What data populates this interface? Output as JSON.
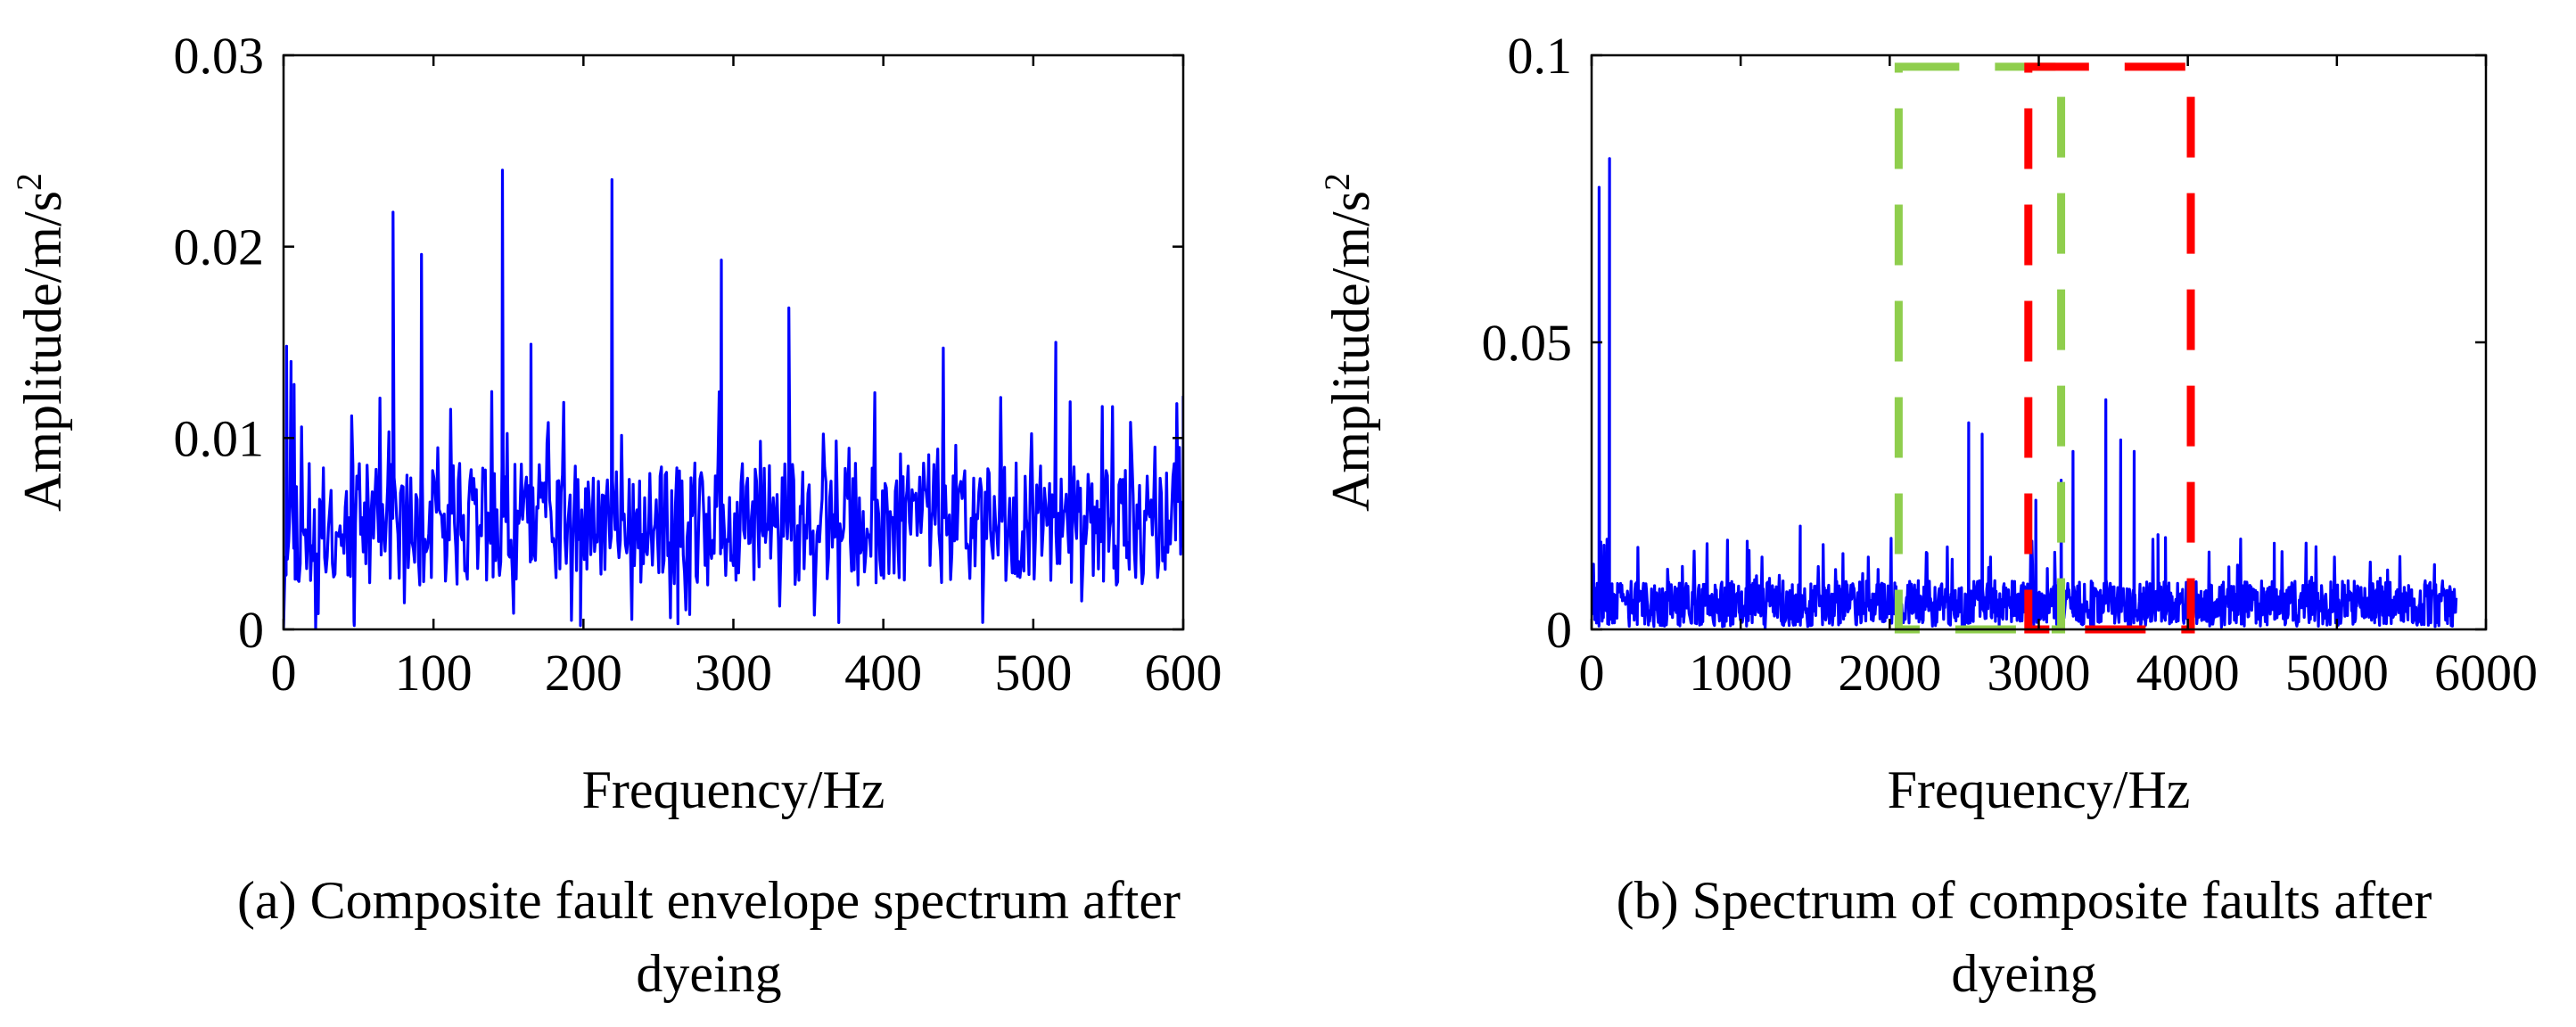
{
  "chart_data": [
    {
      "id": "a",
      "type": "line",
      "caption_lines": [
        "(a) Composite fault envelope spectrum after",
        "dyeing"
      ],
      "xlabel": "Frequency/Hz",
      "ylabel_main": "Amplitude/m/s",
      "ylabel_sup": "2",
      "xlim": [
        0,
        600
      ],
      "ylim": [
        0,
        0.03
      ],
      "xticks": [
        0,
        100,
        200,
        300,
        400,
        500,
        600
      ],
      "xtick_labels": [
        "0",
        "100",
        "200",
        "300",
        "400",
        "500",
        "600"
      ],
      "yticks": [
        0,
        0.01,
        0.02,
        0.03
      ],
      "ytick_labels": [
        "0",
        "0.01",
        "0.02",
        "0.03"
      ],
      "series": [
        {
          "name": "envelope spectrum",
          "color": "#0000ff",
          "noise": {
            "n": 700,
            "base": 0.0055,
            "spread": 0.0032,
            "max": 0.0125,
            "seed": 11
          },
          "peaks": [
            [
              0,
              0.0001
            ],
            [
              2,
              0.0148
            ],
            [
              5,
              0.014
            ],
            [
              7,
              0.0128
            ],
            [
              73,
              0.0218
            ],
            [
              92,
              0.0196
            ],
            [
              146,
              0.024
            ],
            [
              165,
              0.0149
            ],
            [
              219,
              0.0235
            ],
            [
              292,
              0.0193
            ],
            [
              337,
              0.0168
            ],
            [
              440,
              0.0147
            ],
            [
              515,
              0.015
            ],
            [
              600,
              0.0122
            ],
            [
              198,
              0.0002
            ],
            [
              263,
              0.0003
            ],
            [
              47,
              0.0004
            ]
          ]
        }
      ]
    },
    {
      "id": "b",
      "type": "line",
      "caption_lines": [
        "(b) Spectrum of composite faults after",
        "dyeing"
      ],
      "xlabel": "Frequency/Hz",
      "ylabel_main": "Amplitude/m/s",
      "ylabel_sup": "2",
      "xlim": [
        0,
        6000
      ],
      "ylim": [
        0,
        0.1
      ],
      "xticks": [
        0,
        1000,
        2000,
        3000,
        4000,
        5000,
        6000
      ],
      "xtick_labels": [
        "0",
        "1000",
        "2000",
        "3000",
        "4000",
        "5000",
        "6000"
      ],
      "yticks": [
        0,
        0.05,
        0.1
      ],
      "ytick_labels": [
        "0",
        "0.05",
        "0.1"
      ],
      "series": [
        {
          "name": "spectrum",
          "color": "#0000ff",
          "x_end": 5800,
          "noise": {
            "n": 1400,
            "base": 0.0045,
            "spread": 0.004,
            "max": 0.016,
            "seed": 29
          },
          "peaks": [
            [
              50,
              0.077
            ],
            [
              120,
              0.082
            ],
            [
              2530,
              0.036
            ],
            [
              2620,
              0.034
            ],
            [
              2980,
              0.0225
            ],
            [
              3150,
              0.026
            ],
            [
              3230,
              0.031
            ],
            [
              3450,
              0.04
            ],
            [
              3550,
              0.033
            ],
            [
              3640,
              0.031
            ],
            [
              3800,
              0.0165
            ],
            [
              3850,
              0.016
            ],
            [
              1400,
              0.018
            ],
            [
              4580,
              0.015
            ]
          ]
        }
      ],
      "highlight_boxes": [
        {
          "name": "green-dashed-box",
          "x": [
            2060,
            3150
          ],
          "y": [
            0,
            0.098
          ],
          "color": "#8fce4d"
        },
        {
          "name": "red-dashed-box",
          "x": [
            2930,
            4020
          ],
          "y": [
            0,
            0.098
          ],
          "color": "#ff0000"
        }
      ]
    }
  ]
}
